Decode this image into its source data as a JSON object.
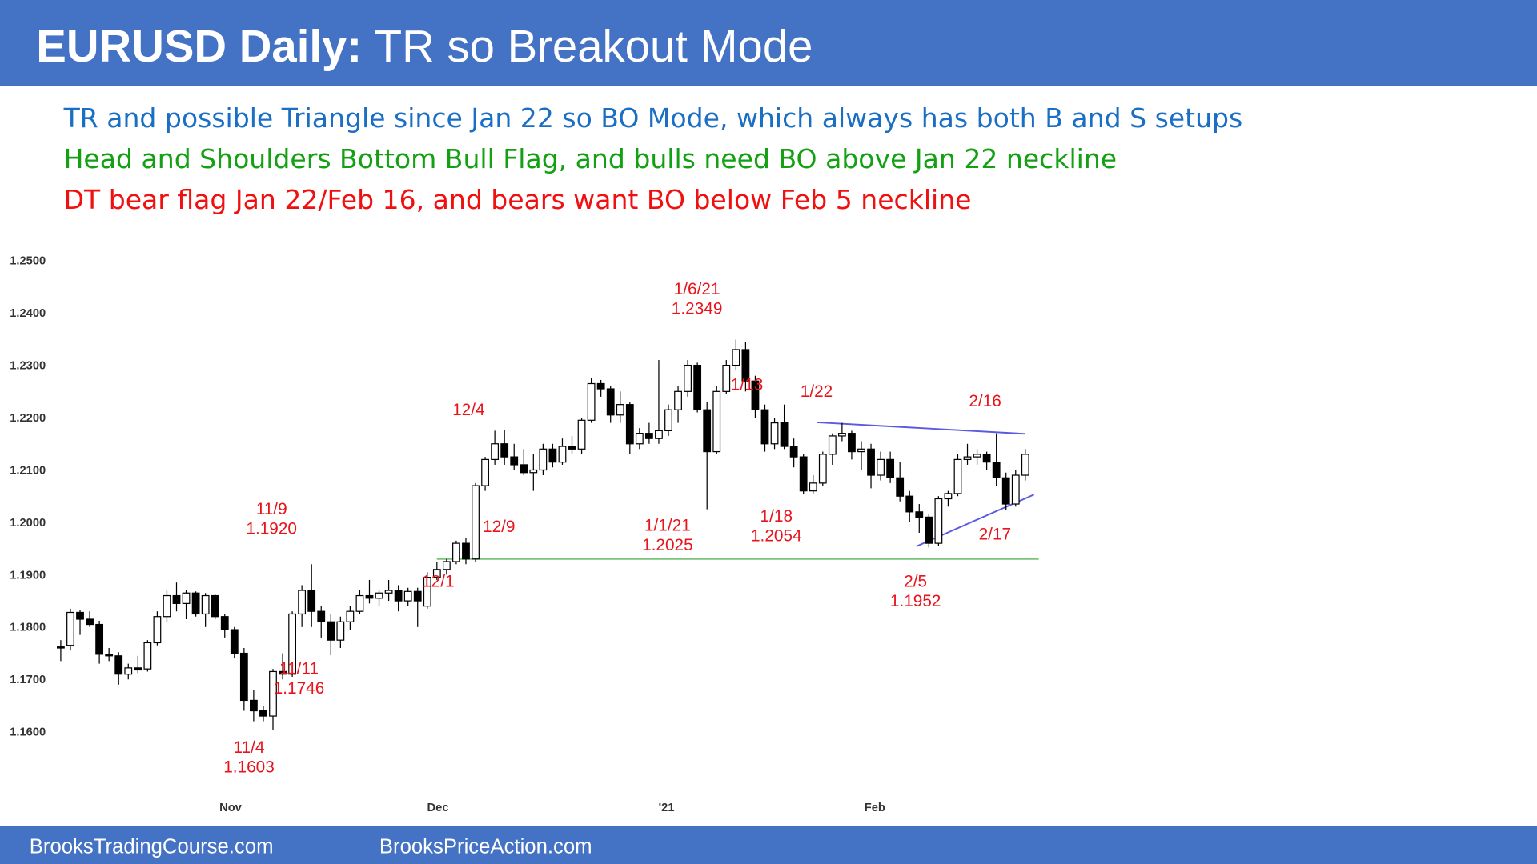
{
  "chart_data": {
    "type": "candlestick",
    "title_bold": "EURUSD Daily:",
    "title_rest": "TR so Breakout Mode",
    "subtitles": [
      {
        "text": "TR and possible Triangle since Jan 22 so BO Mode, which always has both B and S setups",
        "color": "#1a6fc4"
      },
      {
        "text": "Head and Shoulders Bottom Bull Flag, and bulls need BO above Jan 22 neckline",
        "color": "#13a013"
      },
      {
        "text": "DT bear flag Jan 22/Feb 16, and bears want BO below Feb 5 neckline",
        "color": "#f01010"
      }
    ],
    "footer": [
      "BrooksTradingCourse.com",
      "BrooksPriceAction.com"
    ],
    "up_color": "#ffffff",
    "down_color": "#000000",
    "ylim": [
      1.15,
      1.25
    ],
    "yticks": [
      {
        "value": 1.16,
        "label": "1.1600"
      },
      {
        "value": 1.17,
        "label": "1.1700"
      },
      {
        "value": 1.18,
        "label": "1.1800"
      },
      {
        "value": 1.19,
        "label": "1.1900"
      },
      {
        "value": 1.2,
        "label": "1.2000"
      },
      {
        "value": 1.21,
        "label": "1.2100"
      },
      {
        "value": 1.22,
        "label": "1.2200"
      },
      {
        "value": 1.23,
        "label": "1.2300"
      },
      {
        "value": 1.24,
        "label": "1.2400"
      },
      {
        "value": 1.25,
        "label": "1.2500"
      }
    ],
    "xlim": [
      0,
      100
    ],
    "xticks": [
      {
        "value": 17.6,
        "label": "Nov"
      },
      {
        "value": 39.1,
        "label": "Dec"
      },
      {
        "value": 62.8,
        "label": "'21"
      },
      {
        "value": 84.4,
        "label": "Feb"
      }
    ],
    "candles": [
      [
        1.1762,
        1.1775,
        1.1735,
        1.176
      ],
      [
        1.1765,
        1.1835,
        1.1755,
        1.1828
      ],
      [
        1.1828,
        1.1832,
        1.1785,
        1.1815
      ],
      [
        1.1815,
        1.183,
        1.18,
        1.1805
      ],
      [
        1.1805,
        1.1812,
        1.173,
        1.1748
      ],
      [
        1.1748,
        1.176,
        1.1735,
        1.1745
      ],
      [
        1.1745,
        1.1752,
        1.169,
        1.171
      ],
      [
        1.171,
        1.173,
        1.17,
        1.1722
      ],
      [
        1.1722,
        1.1745,
        1.1712,
        1.1718
      ],
      [
        1.172,
        1.1775,
        1.1715,
        1.177
      ],
      [
        1.177,
        1.183,
        1.1765,
        1.182
      ],
      [
        1.182,
        1.187,
        1.181,
        1.186
      ],
      [
        1.186,
        1.1885,
        1.183,
        1.1845
      ],
      [
        1.1845,
        1.187,
        1.1815,
        1.1865
      ],
      [
        1.1865,
        1.1868,
        1.182,
        1.1825
      ],
      [
        1.1825,
        1.1865,
        1.18,
        1.186
      ],
      [
        1.186,
        1.1862,
        1.1815,
        1.182
      ],
      [
        1.182,
        1.1825,
        1.178,
        1.1795
      ],
      [
        1.1795,
        1.18,
        1.174,
        1.175
      ],
      [
        1.175,
        1.176,
        1.164,
        1.166
      ],
      [
        1.166,
        1.168,
        1.162,
        1.164
      ],
      [
        1.164,
        1.165,
        1.162,
        1.163
      ],
      [
        1.163,
        1.172,
        1.1603,
        1.1715
      ],
      [
        1.1715,
        1.175,
        1.17,
        1.171
      ],
      [
        1.171,
        1.183,
        1.1705,
        1.1825
      ],
      [
        1.1825,
        1.188,
        1.18,
        1.187
      ],
      [
        1.187,
        1.192,
        1.18,
        1.183
      ],
      [
        1.183,
        1.184,
        1.178,
        1.181
      ],
      [
        1.181,
        1.1825,
        1.1746,
        1.1775
      ],
      [
        1.1775,
        1.182,
        1.176,
        1.181
      ],
      [
        1.181,
        1.184,
        1.1795,
        1.183
      ],
      [
        1.183,
        1.187,
        1.1825,
        1.186
      ],
      [
        1.186,
        1.189,
        1.1845,
        1.1855
      ],
      [
        1.1855,
        1.187,
        1.184,
        1.1865
      ],
      [
        1.1865,
        1.189,
        1.185,
        1.187
      ],
      [
        1.187,
        1.188,
        1.183,
        1.185
      ],
      [
        1.185,
        1.1875,
        1.184,
        1.1868
      ],
      [
        1.1868,
        1.1875,
        1.18,
        1.185
      ],
      [
        1.184,
        1.1905,
        1.1835,
        1.1895
      ],
      [
        1.1895,
        1.1925,
        1.189,
        1.191
      ],
      [
        1.191,
        1.193,
        1.19,
        1.1925
      ],
      [
        1.1925,
        1.1965,
        1.192,
        1.196
      ],
      [
        1.196,
        1.197,
        1.192,
        1.193
      ],
      [
        1.193,
        1.2075,
        1.1925,
        1.207
      ],
      [
        1.207,
        1.2125,
        1.206,
        1.212
      ],
      [
        1.212,
        1.2175,
        1.211,
        1.215
      ],
      [
        1.215,
        1.2177,
        1.211,
        1.2125
      ],
      [
        1.2125,
        1.215,
        1.21,
        1.211
      ],
      [
        1.211,
        1.214,
        1.209,
        1.2095
      ],
      [
        1.2095,
        1.213,
        1.206,
        1.21
      ],
      [
        1.21,
        1.215,
        1.209,
        1.214
      ],
      [
        1.214,
        1.215,
        1.2105,
        1.2115
      ],
      [
        1.2115,
        1.216,
        1.211,
        1.2145
      ],
      [
        1.2145,
        1.2165,
        1.213,
        1.214
      ],
      [
        1.214,
        1.22,
        1.213,
        1.2195
      ],
      [
        1.2195,
        1.2275,
        1.219,
        1.2265
      ],
      [
        1.2265,
        1.2272,
        1.224,
        1.2255
      ],
      [
        1.2255,
        1.226,
        1.219,
        1.2205
      ],
      [
        1.2205,
        1.225,
        1.219,
        1.2225
      ],
      [
        1.2225,
        1.223,
        1.213,
        1.215
      ],
      [
        1.215,
        1.218,
        1.214,
        1.217
      ],
      [
        1.217,
        1.219,
        1.215,
        1.216
      ],
      [
        1.216,
        1.231,
        1.215,
        1.2175
      ],
      [
        1.2175,
        1.2225,
        1.2165,
        1.2215
      ],
      [
        1.2215,
        1.226,
        1.219,
        1.225
      ],
      [
        1.225,
        1.231,
        1.224,
        1.23
      ],
      [
        1.23,
        1.2305,
        1.221,
        1.2215
      ],
      [
        1.2215,
        1.223,
        1.2025,
        1.2135
      ],
      [
        1.2135,
        1.226,
        1.213,
        1.225
      ],
      [
        1.225,
        1.231,
        1.2245,
        1.23
      ],
      [
        1.23,
        1.2349,
        1.229,
        1.233
      ],
      [
        1.233,
        1.2345,
        1.225,
        1.227
      ],
      [
        1.227,
        1.228,
        1.22,
        1.2215
      ],
      [
        1.2215,
        1.2225,
        1.2135,
        1.215
      ],
      [
        1.215,
        1.22,
        1.214,
        1.219
      ],
      [
        1.219,
        1.2225,
        1.214,
        1.2145
      ],
      [
        1.2145,
        1.216,
        1.2105,
        1.2125
      ],
      [
        1.2125,
        1.213,
        1.2054,
        1.206
      ],
      [
        1.206,
        1.209,
        1.2055,
        1.2075
      ],
      [
        1.2075,
        1.2135,
        1.207,
        1.213
      ],
      [
        1.213,
        1.217,
        1.211,
        1.2165
      ],
      [
        1.2165,
        1.219,
        1.2155,
        1.217
      ],
      [
        1.217,
        1.2175,
        1.212,
        1.2135
      ],
      [
        1.2135,
        1.2155,
        1.21,
        1.214
      ],
      [
        1.214,
        1.215,
        1.2065,
        1.209
      ],
      [
        1.209,
        1.2135,
        1.208,
        1.212
      ],
      [
        1.212,
        1.2135,
        1.2075,
        1.2085
      ],
      [
        1.2085,
        1.2115,
        1.204,
        1.205
      ],
      [
        1.205,
        1.206,
        1.2,
        1.202
      ],
      [
        1.202,
        1.2035,
        1.198,
        1.201
      ],
      [
        1.201,
        1.2015,
        1.1952,
        1.196
      ],
      [
        1.196,
        1.205,
        1.1955,
        1.2045
      ],
      [
        1.2045,
        1.206,
        1.203,
        1.2055
      ],
      [
        1.2055,
        1.213,
        1.205,
        1.212
      ],
      [
        1.212,
        1.215,
        1.211,
        1.2125
      ],
      [
        1.2125,
        1.214,
        1.211,
        1.213
      ],
      [
        1.213,
        1.2135,
        1.21,
        1.2115
      ],
      [
        1.2115,
        1.217,
        1.207,
        1.2085
      ],
      [
        1.2085,
        1.2095,
        1.2023,
        1.2035
      ],
      [
        1.2035,
        1.21,
        1.203,
        1.209
      ],
      [
        1.209,
        1.214,
        1.208,
        1.213
      ]
    ],
    "trendlines": [
      {
        "color": "#7cc47c",
        "points": [
          [
            39,
            1.193
          ],
          [
            101.4,
            1.193
          ]
        ]
      },
      {
        "color": "#5a5ae0",
        "points": [
          [
            78.4,
            1.2191
          ],
          [
            100,
            1.2169
          ]
        ]
      },
      {
        "color": "#5a5ae0",
        "points": [
          [
            88.7,
            1.1954
          ],
          [
            100.9,
            1.2053
          ]
        ]
      }
    ],
    "annotations": [
      {
        "date": "11/9",
        "price": 1.192,
        "price_label": "1.1920"
      },
      {
        "date": "11/11",
        "price": 1.1746,
        "price_label": "1.1746"
      },
      {
        "date": "11/4",
        "price": 1.1603,
        "price_label": "1.1603"
      },
      {
        "date": "12/1"
      },
      {
        "date": "12/4"
      },
      {
        "date": "12/9"
      },
      {
        "date": "1/1/21",
        "price": 1.2025,
        "price_label": "1.2025"
      },
      {
        "date": "1/6/21",
        "price": 1.2349,
        "price_label": "1.2349"
      },
      {
        "date": "1/13"
      },
      {
        "date": "1/18",
        "price": 1.2054,
        "price_label": "1.2054"
      },
      {
        "date": "1/22"
      },
      {
        "date": "2/16"
      },
      {
        "date": "2/5",
        "price": 1.1952,
        "price_label": "1.1952"
      },
      {
        "date": "2/17"
      }
    ]
  }
}
